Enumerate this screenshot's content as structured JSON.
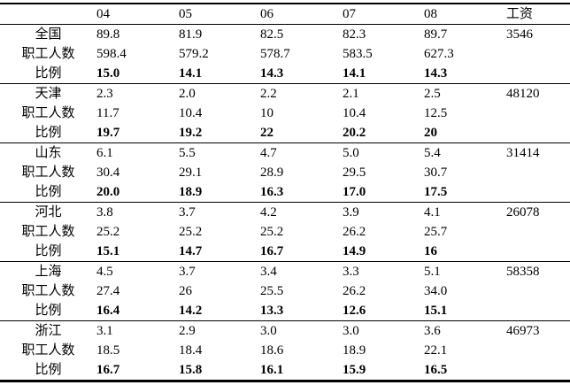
{
  "table": {
    "headers": [
      "",
      "04",
      "05",
      "06",
      "07",
      "08",
      "工资"
    ],
    "row_labels": {
      "employees": "职工人数",
      "ratio": "比例"
    },
    "groups": [
      {
        "region": "全国",
        "wage": "3546",
        "region_values": [
          "89.8",
          "81.9",
          "82.5",
          "82.3",
          "89.7"
        ],
        "employees_values": [
          "598.4",
          "579.2",
          "578.7",
          "583.5",
          "627.3"
        ],
        "ratio_values": [
          "15.0",
          "14.1",
          "14.3",
          "14.1",
          "14.3"
        ]
      },
      {
        "region": "天津",
        "wage": "48120",
        "region_values": [
          "2.3",
          "2.0",
          "2.2",
          "2.1",
          "2.5"
        ],
        "employees_values": [
          "11.7",
          "10.4",
          "10",
          "10.4",
          "12.5"
        ],
        "ratio_values": [
          "19.7",
          "19.2",
          "22",
          "20.2",
          "20"
        ]
      },
      {
        "region": "山东",
        "wage": "31414",
        "region_values": [
          "6.1",
          "5.5",
          "4.7",
          "5.0",
          "5.4"
        ],
        "employees_values": [
          "30.4",
          "29.1",
          "28.9",
          "29.5",
          "30.7"
        ],
        "ratio_values": [
          "20.0",
          "18.9",
          "16.3",
          "17.0",
          "17.5"
        ]
      },
      {
        "region": "河北",
        "wage": "26078",
        "region_values": [
          "3.8",
          "3.7",
          "4.2",
          "3.9",
          "4.1"
        ],
        "employees_values": [
          "25.2",
          "25.2",
          "25.2",
          "26.2",
          "25.7"
        ],
        "ratio_values": [
          "15.1",
          "14.7",
          "16.7",
          "14.9",
          "16"
        ]
      },
      {
        "region": "上海",
        "wage": "58358",
        "region_values": [
          "4.5",
          "3.7",
          "3.4",
          "3.3",
          "5.1"
        ],
        "employees_values": [
          "27.4",
          "26",
          "25.5",
          "26.2",
          "34.0"
        ],
        "ratio_values": [
          "16.4",
          "14.2",
          "13.3",
          "12.6",
          "15.1"
        ]
      },
      {
        "region": "浙江",
        "wage": "46973",
        "region_values": [
          "3.1",
          "2.9",
          "3.0",
          "3.0",
          "3.6"
        ],
        "employees_values": [
          "18.5",
          "18.4",
          "18.6",
          "18.9",
          "22.1"
        ],
        "ratio_values": [
          "16.7",
          "15.8",
          "16.1",
          "15.9",
          "16.5"
        ]
      }
    ]
  }
}
